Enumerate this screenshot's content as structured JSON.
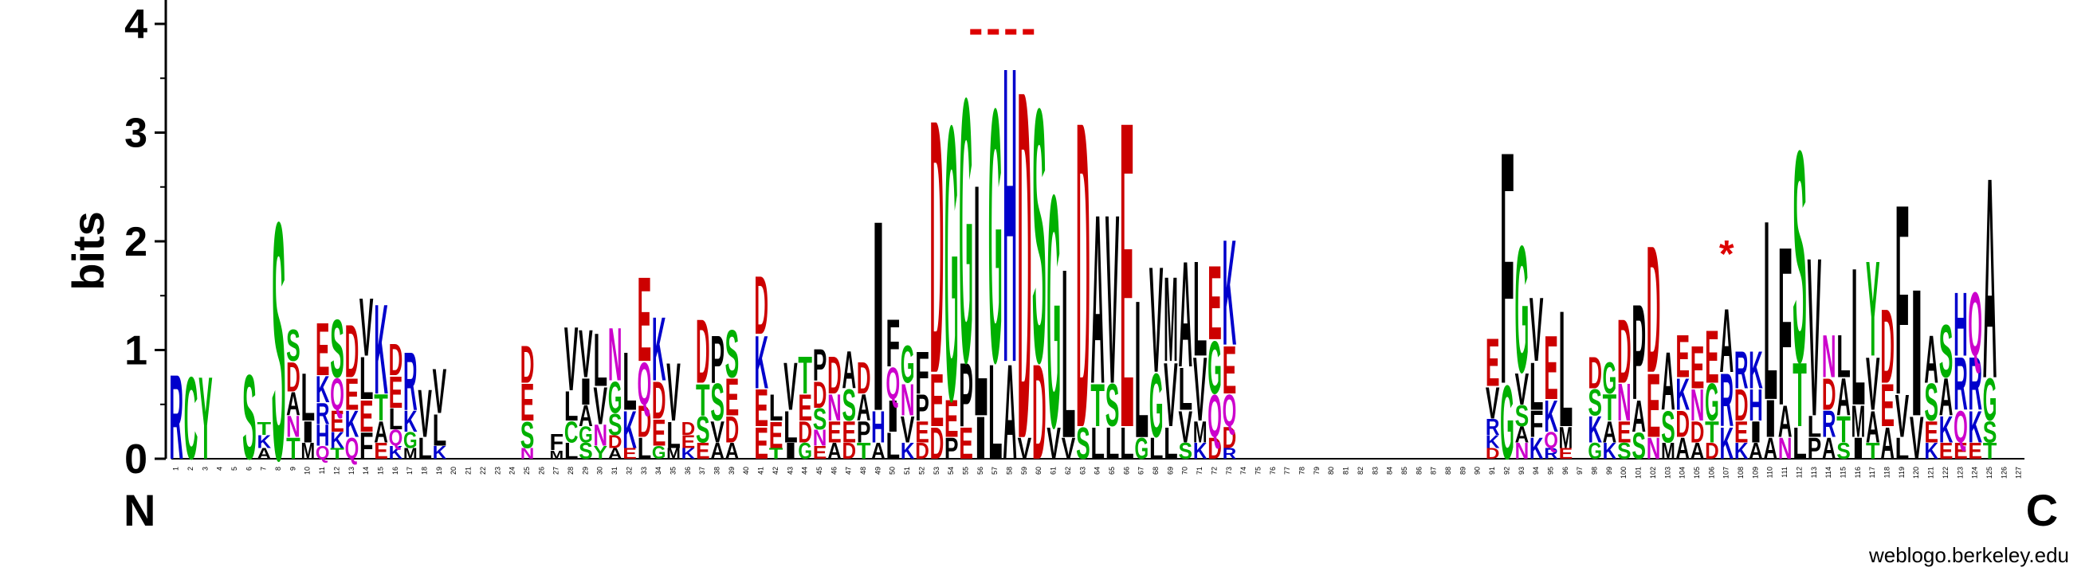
{
  "chart_data": {
    "type": "sequence-logo",
    "ylabel": "bits",
    "ylim": [
      0,
      4.32
    ],
    "yticks": [
      0,
      1,
      2,
      3,
      4
    ],
    "n_positions": 127,
    "termini": {
      "left": "N",
      "right": "C"
    },
    "credit": "weblogo.berkeley.edu",
    "annotations": {
      "dashed_bar": {
        "from_position": 56,
        "to_position": 60,
        "color": "#dd0000"
      },
      "star": {
        "position": 107,
        "text": "*",
        "color": "#dd0000"
      }
    },
    "colors": {
      "acidic": "#cc0000",
      "basic": "#0000cc",
      "polar": "#00b000",
      "amide": "#cc00cc",
      "hydrophobic": "#000000"
    },
    "stacks": {
      "1": [
        [
          "R",
          0.8
        ]
      ],
      "2": [
        [
          "C",
          0.78
        ]
      ],
      "3": [
        [
          "Y",
          0.78
        ]
      ],
      "6": [
        [
          "S",
          0.8
        ]
      ],
      "7": [
        [
          "K",
          0.12
        ],
        [
          "T",
          0.12
        ],
        [
          "A",
          0.1
        ]
      ],
      "8": [
        [
          "S",
          2.25
        ]
      ],
      "9": [
        [
          "S",
          0.3
        ],
        [
          "D",
          0.28
        ],
        [
          "A",
          0.22
        ],
        [
          "T",
          0.2
        ],
        [
          "N",
          0.2
        ]
      ],
      "10": [
        [
          "L",
          0.45
        ],
        [
          "M",
          0.15
        ],
        [
          "I",
          0.2
        ]
      ],
      "11": [
        [
          "E",
          0.5
        ],
        [
          "K",
          0.25
        ],
        [
          "H",
          0.2
        ],
        [
          "R",
          0.2
        ],
        [
          "Q",
          0.12
        ]
      ],
      "12": [
        [
          "S",
          0.55
        ],
        [
          "Q",
          0.3
        ],
        [
          "E",
          0.2
        ],
        [
          "K",
          0.15
        ],
        [
          "T",
          0.1
        ]
      ],
      "13": [
        [
          "E",
          0.3
        ],
        [
          "D",
          0.5
        ],
        [
          "K",
          0.25
        ],
        [
          "Q",
          0.2
        ]
      ],
      "14": [
        [
          "V",
          0.55
        ],
        [
          "L",
          0.4
        ],
        [
          "E",
          0.3
        ],
        [
          "F",
          0.25
        ]
      ],
      "15": [
        [
          "K",
          0.85
        ],
        [
          "T",
          0.25
        ],
        [
          "A",
          0.2
        ],
        [
          "E",
          0.15
        ]
      ],
      "16": [
        [
          "E",
          0.3
        ],
        [
          "D",
          0.3
        ],
        [
          "L",
          0.2
        ],
        [
          "Q",
          0.15
        ],
        [
          "K",
          0.12
        ]
      ],
      "17": [
        [
          "R",
          0.55
        ],
        [
          "K",
          0.2
        ],
        [
          "G",
          0.15
        ],
        [
          "M",
          0.1
        ]
      ],
      "18": [
        [
          "V",
          0.45
        ],
        [
          "L",
          0.2
        ]
      ],
      "19": [
        [
          "V",
          0.42
        ],
        [
          "L",
          0.3
        ],
        [
          "K",
          0.12
        ]
      ],
      "25": [
        [
          "E",
          0.35
        ],
        [
          "D",
          0.35
        ],
        [
          "S",
          0.25
        ],
        [
          "N",
          0.1
        ]
      ],
      "27": [
        [
          "F",
          0.15
        ],
        [
          "M",
          0.08
        ]
      ],
      "28": [
        [
          "V",
          0.6
        ],
        [
          "L",
          0.28
        ],
        [
          "C",
          0.2
        ],
        [
          "L",
          0.15
        ]
      ],
      "29": [
        [
          "V",
          0.45
        ],
        [
          "I",
          0.25
        ],
        [
          "A",
          0.2
        ],
        [
          "S",
          0.15
        ],
        [
          "G",
          0.15
        ]
      ],
      "30": [
        [
          "L",
          0.5
        ],
        [
          "V",
          0.35
        ],
        [
          "N",
          0.2
        ],
        [
          "Y",
          0.12
        ]
      ],
      "31": [
        [
          "N",
          0.5
        ],
        [
          "G",
          0.3
        ],
        [
          "S",
          0.2
        ],
        [
          "D",
          0.12
        ],
        [
          "A",
          0.1
        ]
      ],
      "32": [
        [
          "L",
          0.55
        ],
        [
          "K",
          0.35
        ],
        [
          "E",
          0.1
        ]
      ],
      "33": [
        [
          "E",
          0.8
        ],
        [
          "Q",
          0.4
        ],
        [
          "D",
          0.3
        ],
        [
          "L",
          0.2
        ]
      ],
      "34": [
        [
          "K",
          0.6
        ],
        [
          "D",
          0.35
        ],
        [
          "E",
          0.25
        ],
        [
          "G",
          0.12
        ]
      ],
      "35": [
        [
          "V",
          0.55
        ],
        [
          "L",
          0.25
        ],
        [
          "M",
          0.1
        ]
      ],
      "36": [
        [
          "E",
          0.12
        ],
        [
          "D",
          0.12
        ],
        [
          "K",
          0.1
        ]
      ],
      "37": [
        [
          "D",
          0.6
        ],
        [
          "T",
          0.3
        ],
        [
          "S",
          0.25
        ],
        [
          "E",
          0.15
        ]
      ],
      "38": [
        [
          "P",
          0.45
        ],
        [
          "S",
          0.35
        ],
        [
          "V",
          0.2
        ],
        [
          "A",
          0.15
        ]
      ],
      "39": [
        [
          "S",
          0.45
        ],
        [
          "E",
          0.35
        ],
        [
          "D",
          0.25
        ],
        [
          "A",
          0.15
        ]
      ],
      "41": [
        [
          "D",
          0.55
        ],
        [
          "K",
          0.5
        ],
        [
          "E",
          0.35
        ],
        [
          "E",
          0.3
        ]
      ],
      "42": [
        [
          "E",
          0.25
        ],
        [
          "L",
          0.25
        ],
        [
          "T",
          0.1
        ]
      ],
      "43": [
        [
          "V",
          0.45
        ],
        [
          "L",
          0.3
        ],
        [
          "I",
          0.15
        ]
      ],
      "44": [
        [
          "T",
          0.35
        ],
        [
          "E",
          0.25
        ],
        [
          "D",
          0.2
        ],
        [
          "G",
          0.15
        ]
      ],
      "45": [
        [
          "P",
          0.3
        ],
        [
          "D",
          0.25
        ],
        [
          "S",
          0.2
        ],
        [
          "N",
          0.15
        ],
        [
          "E",
          0.12
        ]
      ],
      "46": [
        [
          "D",
          0.35
        ],
        [
          "N",
          0.25
        ],
        [
          "E",
          0.2
        ],
        [
          "A",
          0.15
        ]
      ],
      "47": [
        [
          "A",
          0.35
        ],
        [
          "S",
          0.3
        ],
        [
          "E",
          0.2
        ],
        [
          "D",
          0.15
        ]
      ],
      "48": [
        [
          "D",
          0.3
        ],
        [
          "A",
          0.25
        ],
        [
          "P",
          0.2
        ],
        [
          "T",
          0.15
        ]
      ],
      "49": [
        [
          "I",
          1.8
        ],
        [
          "H",
          0.3
        ],
        [
          "A",
          0.15
        ]
      ],
      "50": [
        [
          "F",
          0.45
        ],
        [
          "I",
          0.3
        ],
        [
          "Q",
          0.3
        ],
        [
          "L",
          0.25
        ]
      ],
      "51": [
        [
          "G",
          0.35
        ],
        [
          "N",
          0.3
        ],
        [
          "V",
          0.25
        ],
        [
          "K",
          0.15
        ]
      ],
      "52": [
        [
          "F",
          0.4
        ],
        [
          "P",
          0.25
        ],
        [
          "E",
          0.2
        ],
        [
          "D",
          0.15
        ]
      ],
      "53": [
        [
          "D",
          2.4
        ],
        [
          "E",
          0.5
        ],
        [
          "D",
          0.3
        ]
      ],
      "54": [
        [
          "G",
          2.6
        ],
        [
          "E",
          0.35
        ],
        [
          "P",
          0.2
        ]
      ],
      "55": [
        [
          "G",
          2.5
        ],
        [
          "P",
          0.6
        ],
        [
          "E",
          0.3
        ]
      ],
      "56": [
        [
          "L",
          2.2
        ],
        [
          "I",
          0.4
        ]
      ],
      "57": [
        [
          "G",
          2.4
        ],
        [
          "L",
          0.9
        ]
      ],
      "58": [
        [
          "H",
          2.8
        ],
        [
          "A",
          0.9
        ]
      ],
      "59": [
        [
          "D",
          3.3
        ],
        [
          "V",
          0.2
        ]
      ],
      "60": [
        [
          "S",
          2.4
        ],
        [
          "D",
          0.9
        ]
      ],
      "61": [
        [
          "G",
          2.2
        ],
        [
          "V",
          0.3
        ]
      ],
      "62": [
        [
          "L",
          1.6
        ],
        [
          "V",
          0.2
        ]
      ],
      "63": [
        [
          "D",
          2.9
        ],
        [
          "S",
          0.3
        ]
      ],
      "64": [
        [
          "A",
          1.6
        ],
        [
          "T",
          0.4
        ],
        [
          "L",
          0.3
        ]
      ],
      "65": [
        [
          "V",
          1.6
        ],
        [
          "S",
          0.4
        ],
        [
          "L",
          0.3
        ]
      ],
      "66": [
        [
          "E",
          2.9
        ],
        [
          "L",
          0.3
        ]
      ],
      "67": [
        [
          "L",
          1.3
        ],
        [
          "G",
          0.2
        ]
      ],
      "68": [
        [
          "V",
          1.0
        ],
        [
          "G",
          0.6
        ],
        [
          "L",
          0.2
        ]
      ],
      "69": [
        [
          "M",
          0.8
        ],
        [
          "V",
          0.6
        ],
        [
          "L",
          0.3
        ]
      ],
      "70": [
        [
          "A",
          1.0
        ],
        [
          "L",
          0.4
        ],
        [
          "V",
          0.3
        ],
        [
          "S",
          0.15
        ]
      ],
      "71": [
        [
          "L",
          0.9
        ],
        [
          "V",
          0.6
        ],
        [
          "M",
          0.2
        ],
        [
          "K",
          0.15
        ]
      ],
      "72": [
        [
          "E",
          0.7
        ],
        [
          "G",
          0.5
        ],
        [
          "Q",
          0.4
        ],
        [
          "D",
          0.2
        ]
      ],
      "73": [
        [
          "K",
          1.0
        ],
        [
          "E",
          0.45
        ],
        [
          "Q",
          0.3
        ],
        [
          "D",
          0.2
        ],
        [
          "R",
          0.1
        ]
      ],
      "91": [
        [
          "E",
          0.45
        ],
        [
          "V",
          0.3
        ],
        [
          "R",
          0.15
        ],
        [
          "K",
          0.12
        ],
        [
          "D",
          0.1
        ]
      ],
      "92": [
        [
          "F",
          2.2
        ],
        [
          "G",
          0.7
        ]
      ],
      "93": [
        [
          "G",
          1.2
        ],
        [
          "V",
          0.3
        ],
        [
          "S",
          0.2
        ],
        [
          "N",
          0.15
        ],
        [
          "A",
          0.15
        ]
      ],
      "94": [
        [
          "V",
          0.6
        ],
        [
          "L",
          0.45
        ],
        [
          "F",
          0.25
        ],
        [
          "K",
          0.2
        ]
      ],
      "95": [
        [
          "E",
          0.6
        ],
        [
          "K",
          0.3
        ],
        [
          "Q",
          0.15
        ],
        [
          "R",
          0.1
        ]
      ],
      "96": [
        [
          "L",
          1.1
        ],
        [
          "M",
          0.2
        ],
        [
          "E",
          0.1
        ]
      ],
      "98": [
        [
          "D",
          0.3
        ],
        [
          "K",
          0.25
        ],
        [
          "S",
          0.25
        ],
        [
          "G",
          0.15
        ]
      ],
      "99": [
        [
          "G",
          0.3
        ],
        [
          "T",
          0.25
        ],
        [
          "A",
          0.2
        ],
        [
          "K",
          0.15
        ]
      ],
      "100": [
        [
          "D",
          0.6
        ],
        [
          "N",
          0.35
        ],
        [
          "E",
          0.2
        ],
        [
          "S",
          0.15
        ]
      ],
      "101": [
        [
          "P",
          0.9
        ],
        [
          "A",
          0.3
        ],
        [
          "S",
          0.25
        ]
      ],
      "102": [
        [
          "D",
          1.2
        ],
        [
          "E",
          0.6
        ],
        [
          "N",
          0.2
        ]
      ],
      "103": [
        [
          "A",
          0.55
        ],
        [
          "S",
          0.3
        ],
        [
          "M",
          0.15
        ]
      ],
      "104": [
        [
          "E",
          0.4
        ],
        [
          "K",
          0.3
        ],
        [
          "D",
          0.25
        ],
        [
          "A",
          0.2
        ]
      ],
      "105": [
        [
          "E",
          0.4
        ],
        [
          "N",
          0.3
        ],
        [
          "D",
          0.2
        ],
        [
          "A",
          0.15
        ]
      ],
      "106": [
        [
          "E",
          0.5
        ],
        [
          "G",
          0.35
        ],
        [
          "T",
          0.2
        ],
        [
          "D",
          0.15
        ]
      ],
      "107": [
        [
          "A",
          0.6
        ],
        [
          "R",
          0.5
        ],
        [
          "K",
          0.3
        ]
      ],
      "108": [
        [
          "R",
          0.35
        ],
        [
          "D",
          0.3
        ],
        [
          "E",
          0.2
        ],
        [
          "K",
          0.15
        ]
      ],
      "109": [
        [
          "K",
          0.35
        ],
        [
          "H",
          0.3
        ],
        [
          "I",
          0.2
        ],
        [
          "A",
          0.15
        ]
      ],
      "110": [
        [
          "L",
          1.7
        ],
        [
          "I",
          0.35
        ],
        [
          "A",
          0.2
        ]
      ],
      "111": [
        [
          "F",
          1.5
        ],
        [
          "A",
          0.3
        ],
        [
          "N",
          0.2
        ]
      ],
      "112": [
        [
          "S",
          2.0
        ],
        [
          "T",
          0.6
        ],
        [
          "L",
          0.3
        ]
      ],
      "113": [
        [
          "V",
          1.5
        ],
        [
          "P",
          0.2
        ],
        [
          "L",
          0.2
        ]
      ],
      "114": [
        [
          "N",
          0.4
        ],
        [
          "D",
          0.3
        ],
        [
          "R",
          0.25
        ],
        [
          "A",
          0.2
        ]
      ],
      "115": [
        [
          "L",
          0.4
        ],
        [
          "A",
          0.35
        ],
        [
          "T",
          0.25
        ],
        [
          "S",
          0.15
        ]
      ],
      "116": [
        [
          "L",
          1.3
        ],
        [
          "M",
          0.3
        ],
        [
          "I",
          0.2
        ]
      ],
      "117": [
        [
          "Y",
          0.9
        ],
        [
          "V",
          0.5
        ],
        [
          "A",
          0.3
        ],
        [
          "T",
          0.15
        ]
      ],
      "118": [
        [
          "D",
          0.7
        ],
        [
          "E",
          0.4
        ],
        [
          "A",
          0.3
        ]
      ],
      "119": [
        [
          "F",
          1.8
        ],
        [
          "V",
          0.4
        ],
        [
          "L",
          0.2
        ]
      ],
      "120": [
        [
          "I",
          1.2
        ],
        [
          "V",
          0.4
        ]
      ],
      "121": [
        [
          "A",
          0.45
        ],
        [
          "S",
          0.35
        ],
        [
          "E",
          0.2
        ],
        [
          "K",
          0.15
        ]
      ],
      "122": [
        [
          "S",
          0.5
        ],
        [
          "A",
          0.35
        ],
        [
          "K",
          0.25
        ],
        [
          "E",
          0.15
        ]
      ],
      "123": [
        [
          "H",
          0.6
        ],
        [
          "R",
          0.5
        ],
        [
          "Q",
          0.3
        ],
        [
          "E",
          0.15
        ]
      ],
      "124": [
        [
          "Q",
          0.6
        ],
        [
          "R",
          0.5
        ],
        [
          "K",
          0.3
        ],
        [
          "E",
          0.15
        ]
      ],
      "125": [
        [
          "A",
          1.9
        ],
        [
          "G",
          0.4
        ],
        [
          "S",
          0.2
        ],
        [
          "T",
          0.15
        ]
      ]
    }
  }
}
